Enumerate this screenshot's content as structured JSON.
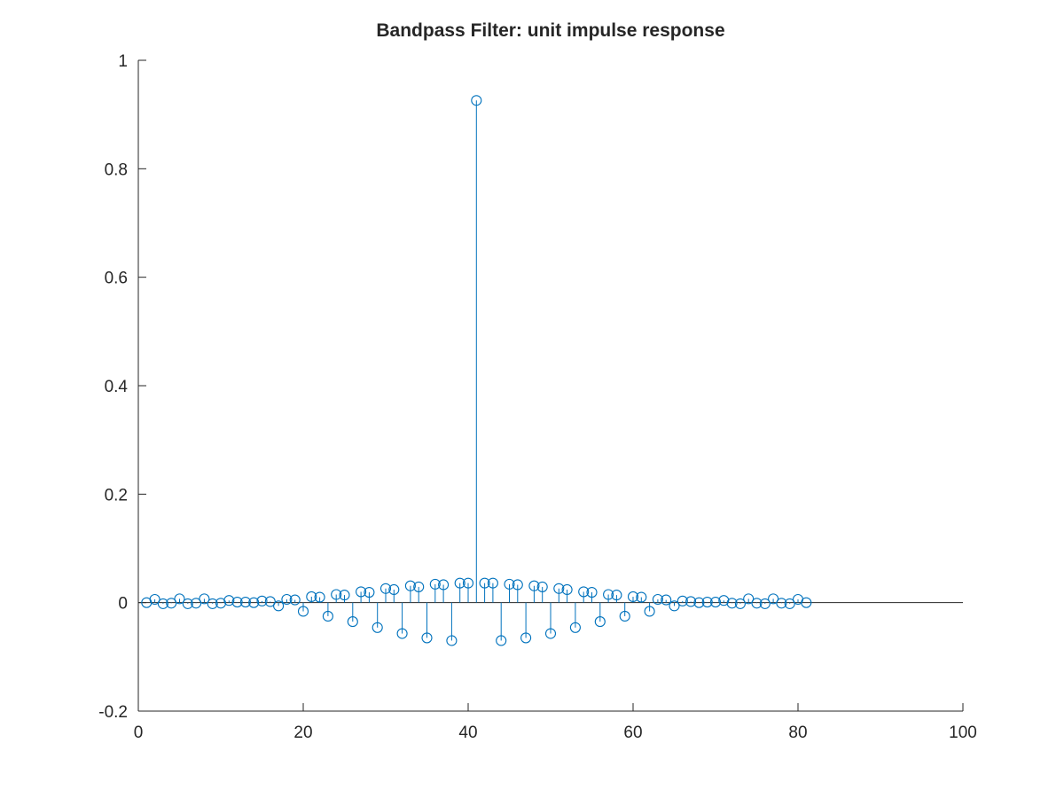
{
  "chart_data": {
    "type": "stem",
    "title": "Bandpass Filter: unit impulse response",
    "xlabel": "",
    "ylabel": "",
    "xlim": [
      0,
      100
    ],
    "ylim": [
      -0.2,
      1
    ],
    "xticks": [
      0,
      20,
      40,
      60,
      80,
      100
    ],
    "yticks": [
      -0.2,
      0,
      0.2,
      0.4,
      0.6,
      0.8,
      1
    ],
    "xtick_labels": [
      "0",
      "20",
      "40",
      "60",
      "80",
      "100"
    ],
    "ytick_labels": [
      "-0.2",
      "0",
      "0.2",
      "0.4",
      "0.6",
      "0.8",
      "1"
    ],
    "grid": false,
    "baseline": 0,
    "color": "#0072bd",
    "marker": "circle-open",
    "series": [
      {
        "x": [
          1,
          2,
          3,
          4,
          5,
          6,
          7,
          8,
          9,
          10,
          11,
          12,
          13,
          14,
          15,
          16,
          17,
          18,
          19,
          20,
          21,
          22,
          23,
          24,
          25,
          26,
          27,
          28,
          29,
          30,
          31,
          32,
          33,
          34,
          35,
          36,
          37,
          38,
          39,
          40,
          41,
          42,
          43,
          44,
          45,
          46,
          47,
          48,
          49,
          50,
          51,
          52,
          53,
          54,
          55,
          56,
          57,
          58,
          59,
          60,
          61,
          62,
          63,
          64,
          65,
          66,
          67,
          68,
          69,
          70,
          71,
          72,
          73,
          74,
          75,
          76,
          77,
          78,
          79,
          80,
          81
        ],
        "values": [
          0,
          0.006,
          -0.002,
          -0.001,
          0.007,
          -0.002,
          -0.001,
          0.007,
          -0.002,
          -0.001,
          0.004,
          0.001,
          0.001,
          0,
          0.003,
          0.002,
          -0.006,
          0.006,
          0.005,
          -0.016,
          0.011,
          0.01,
          -0.025,
          0.015,
          0.014,
          -0.035,
          0.02,
          0.019,
          -0.046,
          0.026,
          0.024,
          -0.057,
          0.031,
          0.029,
          -0.065,
          0.034,
          0.033,
          -0.07,
          0.036,
          0.036,
          0.926,
          0.036,
          0.036,
          -0.07,
          0.034,
          0.033,
          -0.065,
          0.031,
          0.029,
          -0.057,
          0.026,
          0.024,
          -0.046,
          0.02,
          0.019,
          -0.035,
          0.015,
          0.014,
          -0.025,
          0.011,
          0.01,
          -0.016,
          0.006,
          0.005,
          -0.006,
          0.003,
          0.002,
          0,
          0.001,
          0.001,
          0.004,
          -0.001,
          -0.002,
          0.007,
          -0.001,
          -0.002,
          0.007,
          -0.001,
          -0.002,
          0.006,
          0
        ]
      }
    ]
  }
}
